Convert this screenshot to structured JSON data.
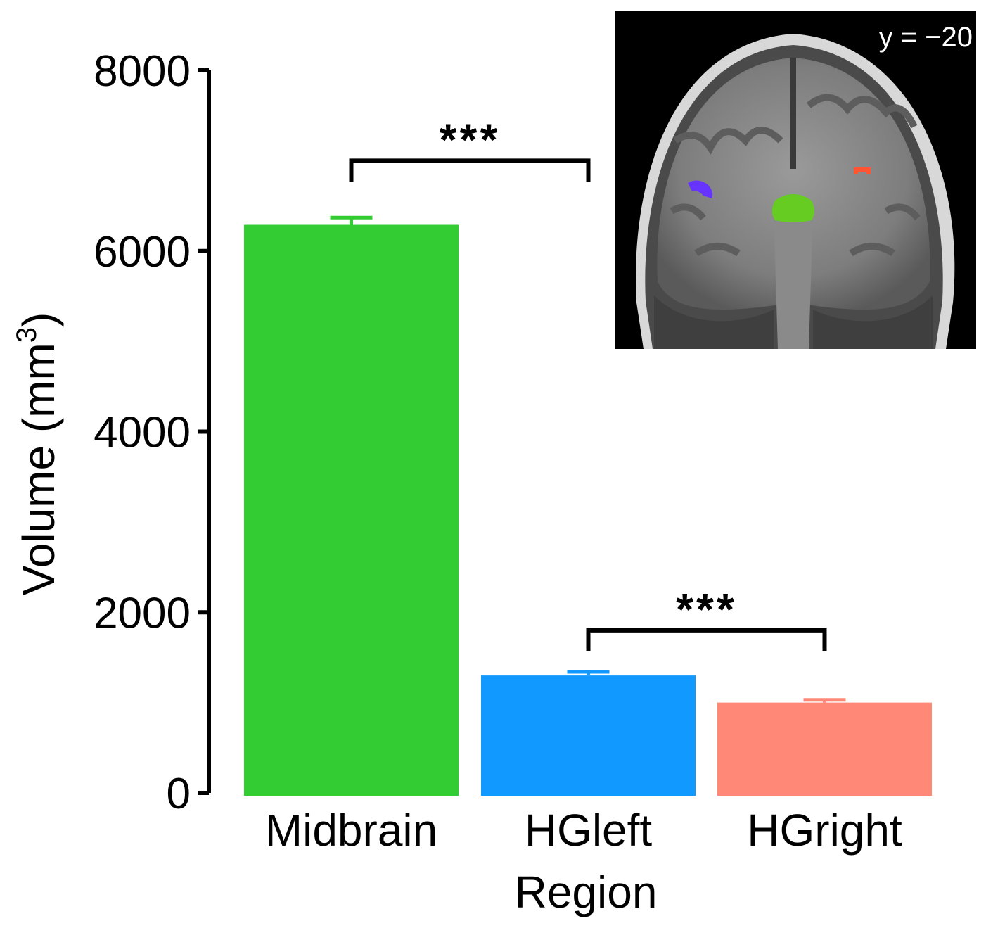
{
  "chart_data": {
    "type": "bar",
    "categories": [
      "Midbrain",
      "HGleft",
      "HGright"
    ],
    "values": [
      6290,
      1300,
      1000
    ],
    "errors": [
      80,
      40,
      30
    ],
    "colors": [
      "#33cc33",
      "#1199ff",
      "#ff8877"
    ],
    "xlabel": "Region",
    "ylabel_main": "Volume (mm",
    "ylabel_sup": "3",
    "ylabel_close": ")",
    "ylim": [
      0,
      8000
    ],
    "yticks": [
      "0",
      "2000",
      "4000",
      "6000",
      "8000"
    ],
    "yticks_values": [
      0,
      2000,
      4000,
      6000,
      8000
    ],
    "significance": [
      {
        "from": 0,
        "to": 1,
        "label": "***",
        "level": 7000
      },
      {
        "from": 1,
        "to": 2,
        "label": "***",
        "level": 1800
      }
    ]
  },
  "inset": {
    "label": "y = −20",
    "description_colors": {
      "left_hg": "#6633ff",
      "right_hg": "#ff5533",
      "midbrain": "#66cc22"
    }
  }
}
